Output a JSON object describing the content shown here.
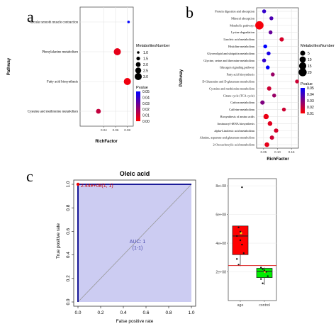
{
  "panel_labels": {
    "a": "a",
    "b": "b",
    "c": "c"
  },
  "chart_data": [
    {
      "id": "a",
      "type": "scatter",
      "title": "",
      "xlabel": "RichFactor",
      "ylabel": "Pathway",
      "xlim": [
        0.0,
        0.09
      ],
      "x_ticks": [
        "0.04",
        "0.06",
        "0.08"
      ],
      "categories": [
        "Vascular smooth muscle contraction",
        "Phenylalanine metabolism",
        "Fatty acid biosynthesis",
        "Cysteine and methionine metabolism"
      ],
      "points": [
        {
          "pathway": "Vascular smooth muscle contraction",
          "richfactor": 0.082,
          "number": 1,
          "pvalue": 0.05
        },
        {
          "pathway": "Phenylalanine metabolism",
          "richfactor": 0.063,
          "number": 3,
          "pvalue": 0.005
        },
        {
          "pathway": "Fatty acid biosynthesis",
          "richfactor": 0.08,
          "number": 3,
          "pvalue": 0.003
        },
        {
          "pathway": "Cysteine and methionine metabolism",
          "richfactor": 0.031,
          "number": 2,
          "pvalue": 0.012
        }
      ],
      "size_legend": {
        "title": "MetabolitesNumber",
        "values": [
          "1.0",
          "1.5",
          "2.0",
          "2.5",
          "3.0"
        ]
      },
      "color_legend": {
        "title": "Pvalue",
        "values": [
          "0.05",
          "0.04",
          "0.03",
          "0.02",
          "0.01",
          "0.00"
        ],
        "low_color": "#ff0000",
        "high_color": "#0000ff"
      }
    },
    {
      "id": "b",
      "type": "scatter",
      "title": "",
      "xlabel": "RichFactor",
      "ylabel": "Pathway",
      "xlim": [
        0.025,
        0.175
      ],
      "x_ticks": [
        "0.05",
        "0.10",
        "0.15"
      ],
      "categories": [
        "Protein digestion and absorption",
        "Mineral absorption",
        "Metabolic pathways",
        "Lysine degradation",
        "Linoleic acid metabolism",
        "Histidine metabolism",
        "Glycerolipid and ubiquitin metabolism",
        "Glycine, serine and threonine metabolism",
        "Glucagon signaling pathway",
        "Fatty acid biosynthesis",
        "D-Glutamine and D-glutamate metabolism",
        "Cysteine and methionine metabolism",
        "Citrate cycle (TCA cycle)",
        "Carbon metabolism",
        "Caffeine metabolism",
        "Biosynthesis of amino acids",
        "Aminoacyl-tRNA biosynthesis",
        "alpha-Linolenic acid metabolism",
        "Alanine, aspartate and glutamate metabolism",
        "2-Oxocarboxylic acid metabolism"
      ],
      "points": [
        {
          "pathway": "Protein digestion and absorption",
          "richfactor": 0.052,
          "number": 2,
          "pvalue": 0.04
        },
        {
          "pathway": "Mineral absorption",
          "richfactor": 0.078,
          "number": 2,
          "pvalue": 0.035
        },
        {
          "pathway": "Metabolic pathways",
          "richfactor": 0.035,
          "number": 22,
          "pvalue": 0.002
        },
        {
          "pathway": "Lysine degradation",
          "richfactor": 0.075,
          "number": 2,
          "pvalue": 0.03
        },
        {
          "pathway": "Linoleic acid metabolism",
          "richfactor": 0.115,
          "number": 3,
          "pvalue": 0.008
        },
        {
          "pathway": "Histidine metabolism",
          "richfactor": 0.056,
          "number": 2,
          "pvalue": 0.05
        },
        {
          "pathway": "Glycerolipid and ubiquitin metabolism",
          "richfactor": 0.068,
          "number": 2,
          "pvalue": 0.045
        },
        {
          "pathway": "Glycine, serine and threonine metabolism",
          "richfactor": 0.052,
          "number": 2,
          "pvalue": 0.04
        },
        {
          "pathway": "Glucagon signaling pathway",
          "richfactor": 0.065,
          "number": 2,
          "pvalue": 0.05
        },
        {
          "pathway": "Fatty acid biosynthesis",
          "richfactor": 0.083,
          "number": 2,
          "pvalue": 0.02
        },
        {
          "pathway": "D-Glutamine and D-glutamate metabolism",
          "richfactor": 0.17,
          "number": 2,
          "pvalue": 0.01
        },
        {
          "pathway": "Cysteine and methionine metabolism",
          "richfactor": 0.07,
          "number": 3,
          "pvalue": 0.01
        },
        {
          "pathway": "Citrate cycle (TCA cycle)",
          "richfactor": 0.088,
          "number": 2,
          "pvalue": 0.02
        },
        {
          "pathway": "Carbon metabolism",
          "richfactor": 0.046,
          "number": 3,
          "pvalue": 0.025
        },
        {
          "pathway": "Caffeine metabolism",
          "richfactor": 0.123,
          "number": 2,
          "pvalue": 0.01
        },
        {
          "pathway": "Biosynthesis of amino acids",
          "richfactor": 0.059,
          "number": 6,
          "pvalue": 0.004
        },
        {
          "pathway": "Aminoacyl-tRNA biosynthesis",
          "richfactor": 0.073,
          "number": 4,
          "pvalue": 0.006
        },
        {
          "pathway": "alpha-Linolenic acid metabolism",
          "richfactor": 0.095,
          "number": 3,
          "pvalue": 0.008
        },
        {
          "pathway": "Alanine, aspartate and glutamate metabolism",
          "richfactor": 0.08,
          "number": 3,
          "pvalue": 0.01
        },
        {
          "pathway": "2-Oxocarboxylic acid metabolism",
          "richfactor": 0.062,
          "number": 4,
          "pvalue": 0.005
        }
      ],
      "size_legend": {
        "title": "MetabolitesNumber",
        "values": [
          "5",
          "10",
          "15",
          "20"
        ]
      },
      "color_legend": {
        "title": "Pvalue",
        "values": [
          "0.05",
          "0.04",
          "0.03",
          "0.02",
          "0.01"
        ],
        "low_color": "#ff0000",
        "high_color": "#0000ff"
      }
    },
    {
      "id": "c-roc",
      "type": "line",
      "title": "Oleic acid",
      "xlabel": "False positive rate",
      "ylabel": "True positive rate",
      "xlim": [
        0,
        1
      ],
      "ylim": [
        0,
        1
      ],
      "x_ticks": [
        "0.0",
        "0.2",
        "0.4",
        "0.6",
        "0.8",
        "1.0"
      ],
      "y_ticks": [
        "0.0",
        "0.2",
        "0.4",
        "0.6",
        "0.8",
        "1.0"
      ],
      "series": [
        {
          "x": [
            0,
            0,
            1
          ],
          "y": [
            0,
            1,
            1
          ]
        }
      ],
      "diagonal": [
        [
          0,
          0
        ],
        [
          1,
          1
        ]
      ],
      "threshold_point": {
        "x": 0,
        "y": 1,
        "label": "2.44e+08(1, 1)"
      },
      "auc_label": "AUC: 1",
      "auc_ci_label": "(1-1)",
      "fill_color": "#ccccf2",
      "line_color": "#00008b"
    },
    {
      "id": "c-box",
      "type": "box",
      "title": "",
      "ylim": [
        0,
        850000000
      ],
      "y_ticks": [
        {
          "value": 200000000,
          "label": "2e+08"
        },
        {
          "value": 400000000,
          "label": "4e+08"
        },
        {
          "value": 600000000,
          "label": "6e+08"
        },
        {
          "value": 800000000,
          "label": "8e+08"
        }
      ],
      "categories": [
        "age",
        "control"
      ],
      "boxes": [
        {
          "group": "age",
          "color": "#ff0000",
          "q1": 320000000,
          "median": 450000000,
          "q3": 520000000,
          "whisker_low": 240000000,
          "whisker_high": 520000000,
          "mean": 470000000,
          "outliers": [
            790000000
          ]
        },
        {
          "group": "control",
          "color": "#00ee00",
          "q1": 160000000,
          "median": 205000000,
          "q3": 225000000,
          "whisker_low": 110000000,
          "whisker_high": 230000000,
          "mean": 200000000,
          "outliers": []
        }
      ],
      "jitter": {
        "age": [
          450000000,
          510000000,
          480000000,
          390000000,
          330000000,
          290000000,
          250000000,
          420000000,
          790000000
        ],
        "control": [
          230000000,
          220000000,
          210000000,
          200000000,
          170000000,
          150000000,
          120000000
        ]
      },
      "threshold_line": {
        "value": 244000000,
        "color": "#dd2222"
      }
    }
  ]
}
